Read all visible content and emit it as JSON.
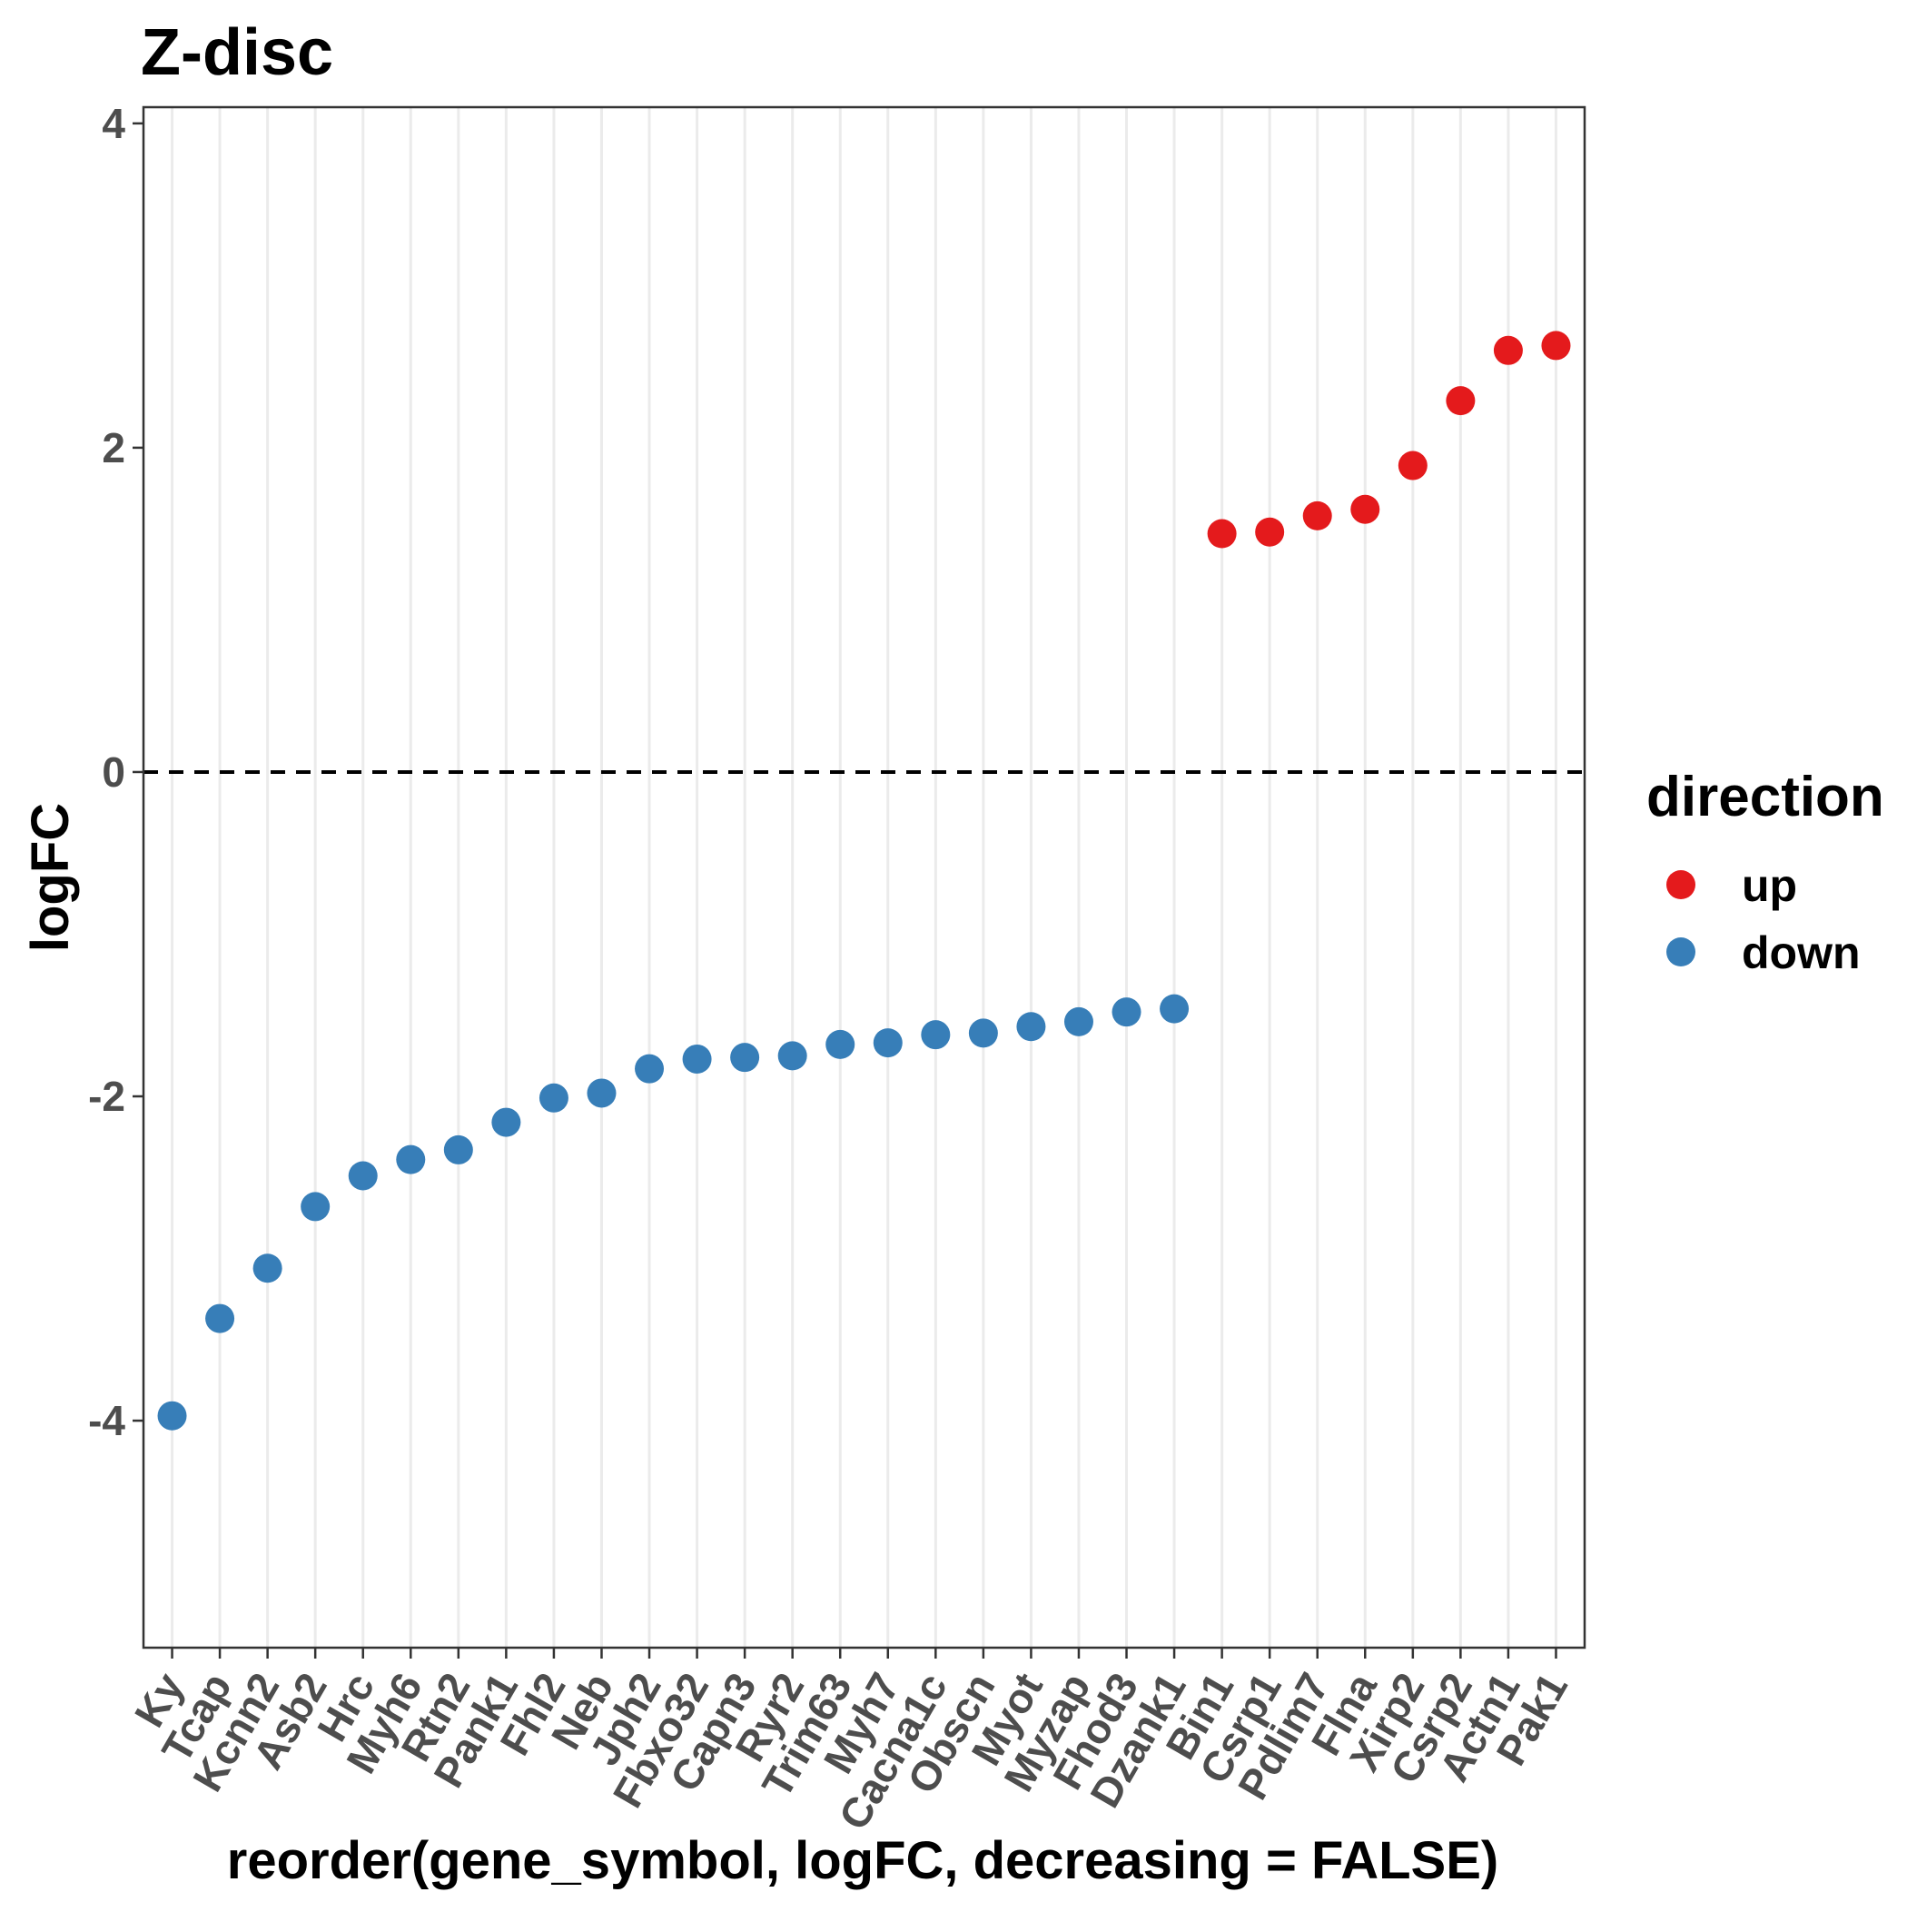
{
  "chart_data": {
    "type": "scatter",
    "title": "Z-disc",
    "xlabel": "reorder(gene_symbol, logFC, decreasing = FALSE)",
    "ylabel": "logFC",
    "ylim": [
      -5.4,
      4.1
    ],
    "yticks": [
      "-4",
      "-2",
      "0",
      "2",
      "4"
    ],
    "grid": "vertical-major",
    "reference_line": {
      "y": 0,
      "style": "dashed"
    },
    "legend": {
      "title": "direction",
      "position": "right",
      "entries": [
        {
          "label": "up",
          "color": "#e41a1c"
        },
        {
          "label": "down",
          "color": "#377eb8"
        }
      ]
    },
    "categories": [
      "Ky",
      "Tcap",
      "Kcnn2",
      "Asb2",
      "Hrc",
      "Myh6",
      "Rtn2",
      "Pank1",
      "Fhl2",
      "Neb",
      "Jph2",
      "Fbxo32",
      "Capn3",
      "Ryr2",
      "Trim63",
      "Myh7",
      "Cacna1c",
      "Obscn",
      "Myot",
      "Myzap",
      "Fhod3",
      "Dzank1",
      "Bin1",
      "Csrp1",
      "Pdlim7",
      "Flna",
      "Xirp2",
      "Csrp2",
      "Actn1",
      "Pak1"
    ],
    "values": [
      -3.97,
      -3.37,
      -3.06,
      -2.68,
      -2.49,
      -2.39,
      -2.33,
      -2.16,
      -2.01,
      -1.98,
      -1.83,
      -1.77,
      -1.76,
      -1.75,
      -1.68,
      -1.67,
      -1.62,
      -1.61,
      -1.57,
      -1.54,
      -1.48,
      -1.46,
      1.47,
      1.48,
      1.58,
      1.62,
      1.89,
      2.29,
      2.6,
      2.63
    ],
    "direction": [
      "down",
      "down",
      "down",
      "down",
      "down",
      "down",
      "down",
      "down",
      "down",
      "down",
      "down",
      "down",
      "down",
      "down",
      "down",
      "down",
      "down",
      "down",
      "down",
      "down",
      "down",
      "down",
      "up",
      "up",
      "up",
      "up",
      "up",
      "up",
      "up",
      "up"
    ]
  }
}
